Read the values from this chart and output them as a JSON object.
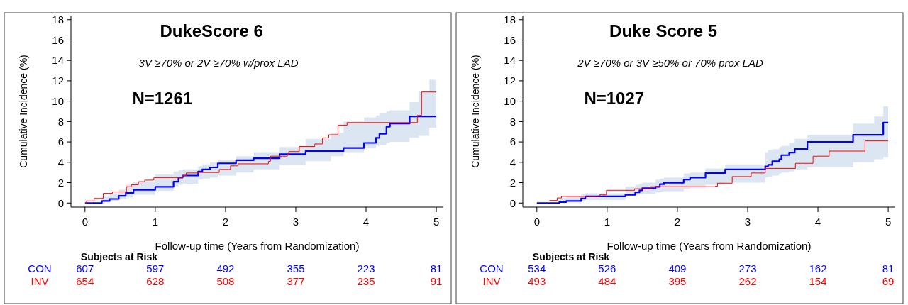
{
  "chart_data": [
    {
      "type": "step",
      "title": "DukeScore 6",
      "subtitle": "3V ≥70% or 2V ≥70% w/prox LAD",
      "xlabel": "Follow-up time (Years from Randomization)",
      "ylabel": "Cumulative Incidence (%)",
      "xlim": [
        -0.2,
        5.1
      ],
      "ylim": [
        -0.4,
        18.4
      ],
      "xticks": [
        0,
        1,
        2,
        3,
        4,
        5
      ],
      "yticks": [
        0,
        2,
        4,
        6,
        8,
        10,
        12,
        14,
        16,
        18
      ],
      "grid": false,
      "legend": false,
      "annotations": [
        "N=1261",
        "Subjects at Risk",
        "607",
        "597",
        "492",
        "355",
        "223",
        "81",
        "654",
        "628",
        "508",
        "377",
        "235",
        "91"
      ],
      "series": [
        {
          "name": "CON",
          "color": "#0000ff",
          "x": [
            0,
            0.24,
            0.35,
            0.48,
            0.58,
            0.69,
            1.0,
            1.26,
            1.33,
            1.39,
            1.61,
            1.67,
            1.78,
            1.89,
            2.15,
            2.4,
            2.77,
            3.14,
            3.5,
            3.68,
            3.97,
            4.14,
            4.19,
            4.29,
            4.34,
            4.62,
            4.75,
            4.9,
            5
          ],
          "values": [
            0,
            0.2,
            0.4,
            0.7,
            1.0,
            1.3,
            1.6,
            2.1,
            2.5,
            2.7,
            3.1,
            3.3,
            3.5,
            3.9,
            4.2,
            4.4,
            4.8,
            5.1,
            5.1,
            5.4,
            5.9,
            6.4,
            6.8,
            7.5,
            7.8,
            8.5,
            8.5,
            8.5,
            8.5
          ],
          "lower": [
            0,
            0.1,
            0.2,
            0.4,
            0.55,
            0.8,
            1.2,
            1.6,
            1.8,
            1.9,
            2.3,
            2.4,
            2.5,
            2.7,
            3.0,
            3.3,
            3.7,
            4.1,
            4.6,
            5.0,
            5.4,
            5.6,
            5.7,
            5.9,
            6.0,
            6.4,
            6.6,
            7.4,
            7.4
          ],
          "upper": [
            0,
            0.6,
            0.9,
            1.3,
            1.8,
            2.1,
            2.8,
            3.1,
            3.2,
            3.3,
            3.6,
            3.8,
            4.0,
            4.2,
            4.6,
            5.0,
            5.5,
            6.3,
            6.9,
            8.0,
            8.4,
            8.6,
            8.8,
            9.0,
            9.1,
            9.9,
            11.0,
            12.1,
            12.1
          ]
        },
        {
          "name": "INV",
          "color": "#ff0000",
          "x": [
            0,
            0.02,
            0.13,
            0.26,
            0.39,
            0.59,
            0.66,
            0.76,
            0.85,
            0.98,
            1.39,
            1.44,
            1.61,
            1.91,
            2.07,
            2.18,
            2.61,
            2.64,
            2.88,
            2.9,
            3.05,
            3.27,
            3.38,
            3.47,
            3.6,
            3.73,
            4.73,
            4.79,
            5
          ],
          "values": [
            0,
            0.2,
            0.45,
            0.95,
            1.1,
            1.6,
            1.8,
            2.1,
            2.25,
            2.5,
            2.7,
            2.95,
            3.0,
            3.3,
            3.65,
            3.85,
            4.1,
            4.6,
            4.8,
            5.05,
            5.55,
            5.8,
            6.4,
            6.7,
            7.65,
            7.9,
            8.6,
            10.9,
            10.9
          ]
        }
      ]
    },
    {
      "type": "step",
      "title": "Duke Score 5",
      "subtitle": "2V ≥70% or 3V ≥50% or 70% prox LAD",
      "xlabel": "Follow-up time (Years from Randomization)",
      "ylabel": "Cumulative Incidence (%)",
      "xlim": [
        -0.2,
        5.1
      ],
      "ylim": [
        -0.4,
        18.4
      ],
      "xticks": [
        0,
        1,
        2,
        3,
        4,
        5
      ],
      "yticks": [
        0,
        2,
        4,
        6,
        8,
        10,
        12,
        14,
        16,
        18
      ],
      "grid": false,
      "legend": false,
      "annotations": [
        "N=1027",
        "Subjects at Risk",
        "534",
        "526",
        "409",
        "273",
        "162",
        "81",
        "493",
        "484",
        "395",
        "262",
        "154",
        "69"
      ],
      "series": [
        {
          "name": "CON",
          "color": "#0000ff",
          "x": [
            0,
            0.32,
            0.42,
            0.63,
            0.69,
            1.26,
            1.4,
            1.46,
            1.5,
            1.69,
            1.75,
            1.81,
            2.09,
            2.18,
            2.4,
            2.68,
            3.25,
            3.29,
            3.35,
            3.45,
            3.48,
            3.59,
            3.67,
            3.85,
            4.5,
            4.8,
            4.93,
            5
          ],
          "values": [
            0,
            0.1,
            0.2,
            0.45,
            0.65,
            0.8,
            1.05,
            1.25,
            1.45,
            1.6,
            1.85,
            2.0,
            2.3,
            2.5,
            2.95,
            3.3,
            3.6,
            3.75,
            4.1,
            4.3,
            4.7,
            4.95,
            5.3,
            6.0,
            6.7,
            6.7,
            7.9,
            7.9
          ],
          "lower": [
            0,
            0.1,
            0.15,
            0.25,
            0.3,
            0.7,
            0.8,
            0.85,
            0.9,
            1.05,
            1.1,
            1.15,
            1.4,
            1.5,
            1.8,
            2.0,
            2.5,
            2.6,
            2.7,
            2.9,
            3.0,
            3.1,
            3.3,
            3.5,
            4.0,
            4.3,
            4.5,
            4.5
          ],
          "upper": [
            0,
            0.5,
            0.65,
            0.9,
            0.95,
            1.6,
            1.8,
            1.9,
            2.0,
            2.3,
            2.4,
            2.5,
            2.9,
            3.0,
            3.4,
            3.8,
            5.0,
            5.2,
            5.3,
            5.5,
            5.6,
            5.9,
            6.3,
            6.7,
            7.8,
            8.5,
            9.5,
            9.5
          ]
        },
        {
          "name": "INV",
          "color": "#ff0000",
          "x": [
            0.18,
            0.29,
            0.35,
            0.89,
            0.99,
            1.39,
            1.62,
            2.54,
            2.57,
            2.78,
            3.05,
            3.25,
            3.68,
            3.93,
            4.16,
            4.67,
            5
          ],
          "values": [
            0.25,
            0.5,
            0.65,
            0.8,
            1.25,
            1.4,
            1.6,
            1.65,
            1.95,
            2.6,
            2.95,
            3.4,
            3.9,
            4.6,
            5.1,
            6.1,
            6.1
          ]
        }
      ]
    }
  ]
}
